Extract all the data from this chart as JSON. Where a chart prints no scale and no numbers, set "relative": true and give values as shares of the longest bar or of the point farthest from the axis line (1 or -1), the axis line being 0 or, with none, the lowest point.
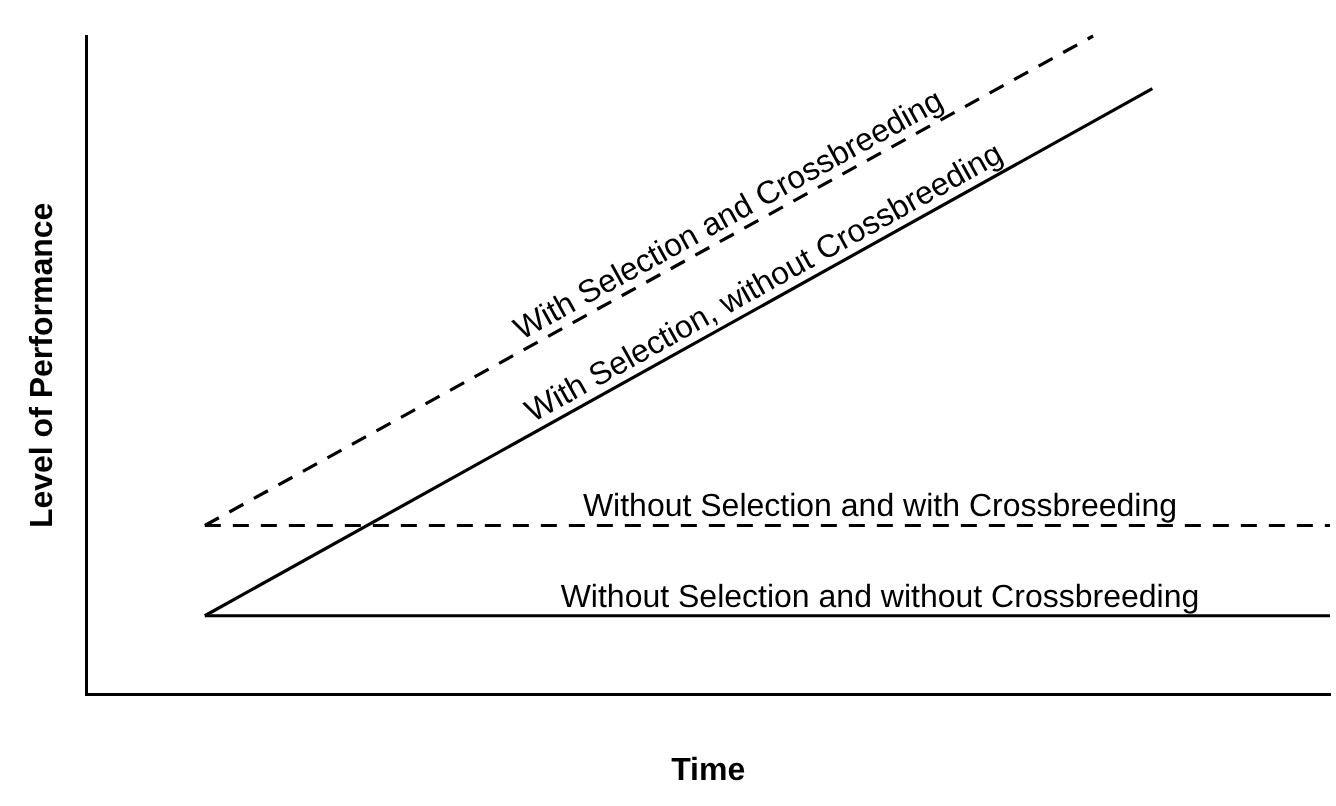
{
  "chart_data": {
    "type": "line",
    "xlabel": "Time",
    "ylabel": "Level of Performance",
    "relative": true,
    "grid": false,
    "legend": false,
    "marker": "none",
    "categories": [
      null,
      null,
      null,
      null,
      null,
      null,
      null,
      null,
      null,
      null,
      null,
      null,
      null,
      null,
      null,
      null,
      null,
      null,
      null,
      null,
      null,
      null
    ],
    "series": [
      {
        "name": "With Selection and Crossbreeding",
        "color": "#000000",
        "line_style": "dashed",
        "values": [
          null,
          null,
          0.257,
          null,
          null,
          null,
          null,
          null,
          null,
          null,
          null,
          null,
          null,
          null,
          null,
          null,
          null,
          1,
          null,
          null,
          null,
          null
        ]
      },
      {
        "name": "With Selection, without Crossbreeding",
        "color": "#000000",
        "line_style": "solid",
        "values": [
          null,
          null,
          0.12,
          null,
          null,
          null,
          null,
          null,
          null,
          null,
          null,
          null,
          null,
          null,
          null,
          null,
          null,
          null,
          0.92,
          null,
          null,
          null
        ]
      },
      {
        "name": "Without Selection and with Crossbreeding",
        "color": "#000000",
        "line_style": "dashed",
        "values": [
          null,
          null,
          0.257,
          null,
          null,
          null,
          null,
          null,
          null,
          null,
          null,
          null,
          null,
          null,
          null,
          null,
          null,
          null,
          null,
          null,
          null,
          0.257
        ]
      },
      {
        "name": "Without Selection and without Crossbreeding",
        "color": "#000000",
        "line_style": "solid",
        "values": [
          null,
          null,
          0.12,
          null,
          null,
          null,
          null,
          null,
          null,
          null,
          null,
          null,
          null,
          null,
          null,
          null,
          null,
          null,
          null,
          null,
          null,
          0.12
        ]
      }
    ]
  }
}
